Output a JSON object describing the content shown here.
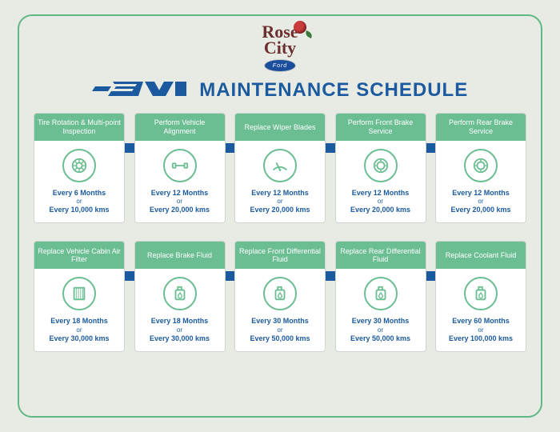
{
  "brand": {
    "name_line1": "Rose",
    "name_line2": "City",
    "sub_badge": "Ford"
  },
  "title": {
    "badge_text": "EV",
    "main": "MAINTENANCE SCHEDULE"
  },
  "colors": {
    "accent_green": "#6bbd92",
    "accent_blue": "#1b5a9e",
    "frame_border": "#5fb885",
    "background": "#e8eae4",
    "card_bg": "#ffffff"
  },
  "cards": [
    {
      "title": "Tire Rotation & Multi-point Inspection",
      "icon": "tire",
      "freq_top": "Every 6 Months",
      "freq_bot": "Every 10,000 kms"
    },
    {
      "title": "Perform Vehicle Alignment",
      "icon": "alignment",
      "freq_top": "Every 12 Months",
      "freq_bot": "Every 20,000 kms"
    },
    {
      "title": "Replace Wiper Blades",
      "icon": "wiper",
      "freq_top": "Every 12 Months",
      "freq_bot": "Every 20,000 kms"
    },
    {
      "title": "Perform Front Brake Service",
      "icon": "brake",
      "freq_top": "Every 12 Months",
      "freq_bot": "Every 20,000 kms"
    },
    {
      "title": "Perform Rear Brake Service",
      "icon": "brake",
      "freq_top": "Every 12 Months",
      "freq_bot": "Every 20,000 kms"
    },
    {
      "title": "Replace Vehicle Cabin Air Filter",
      "icon": "filter",
      "freq_top": "Every 18 Months",
      "freq_bot": "Every 30,000 kms"
    },
    {
      "title": "Replace Brake Fluid",
      "icon": "fluid",
      "freq_top": "Every 18 Months",
      "freq_bot": "Every 30,000 kms"
    },
    {
      "title": "Replace Front Differential Fluid",
      "icon": "fluid",
      "freq_top": "Every 30 Months",
      "freq_bot": "Every 50,000 kms"
    },
    {
      "title": "Replace Rear Differential Fluid",
      "icon": "fluid",
      "freq_top": "Every 30 Months",
      "freq_bot": "Every 50,000 kms"
    },
    {
      "title": "Replace Coolant Fluid",
      "icon": "fluid",
      "freq_top": "Every 60 Months",
      "freq_bot": "Every 100,000 kms"
    }
  ],
  "or_label": "or"
}
